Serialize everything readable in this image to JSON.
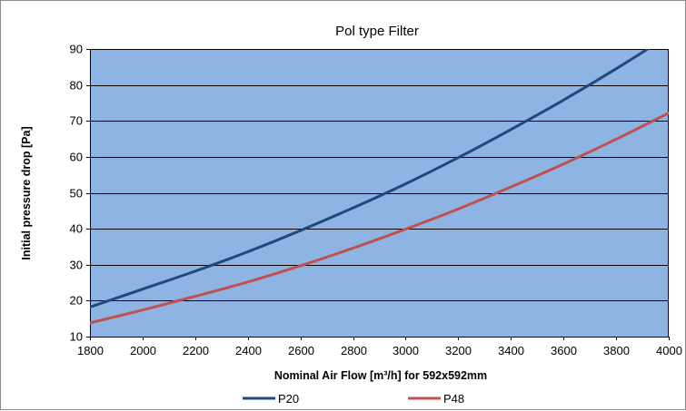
{
  "chart_data": {
    "type": "line",
    "title": "Pol type Filter",
    "xlabel": "Nominal Air Flow [m³/h] for 592x592mm",
    "ylabel": "Initial pressure drop [Pa]",
    "xlim": [
      1800,
      4000
    ],
    "ylim": [
      10,
      90
    ],
    "x_ticks": [
      1800,
      2000,
      2200,
      2400,
      2600,
      2800,
      3000,
      3200,
      3400,
      3600,
      3800,
      4000
    ],
    "y_ticks": [
      10,
      20,
      30,
      40,
      50,
      60,
      70,
      80,
      90
    ],
    "grid": true,
    "legend_position": "bottom",
    "plot_background": "#8db4e2",
    "series": [
      {
        "name": "P20",
        "color": "#1f497d",
        "x": [
          1800,
          2000,
          2200,
          2400,
          2600,
          2800,
          3000,
          3200,
          3400,
          3600,
          3800,
          4000
        ],
        "y": [
          18.2,
          23.2,
          28.2,
          33.6,
          39.5,
          45.8,
          52.5,
          59.8,
          67.6,
          75.8,
          84.5,
          93.7
        ]
      },
      {
        "name": "P48",
        "color": "#c0504d",
        "x": [
          1800,
          2000,
          2200,
          2400,
          2600,
          2800,
          3000,
          3200,
          3400,
          3600,
          3800,
          4000
        ],
        "y": [
          13.8,
          17.4,
          21.2,
          25.2,
          29.7,
          34.6,
          39.9,
          45.5,
          51.6,
          58.0,
          64.9,
          72.2
        ]
      }
    ]
  }
}
